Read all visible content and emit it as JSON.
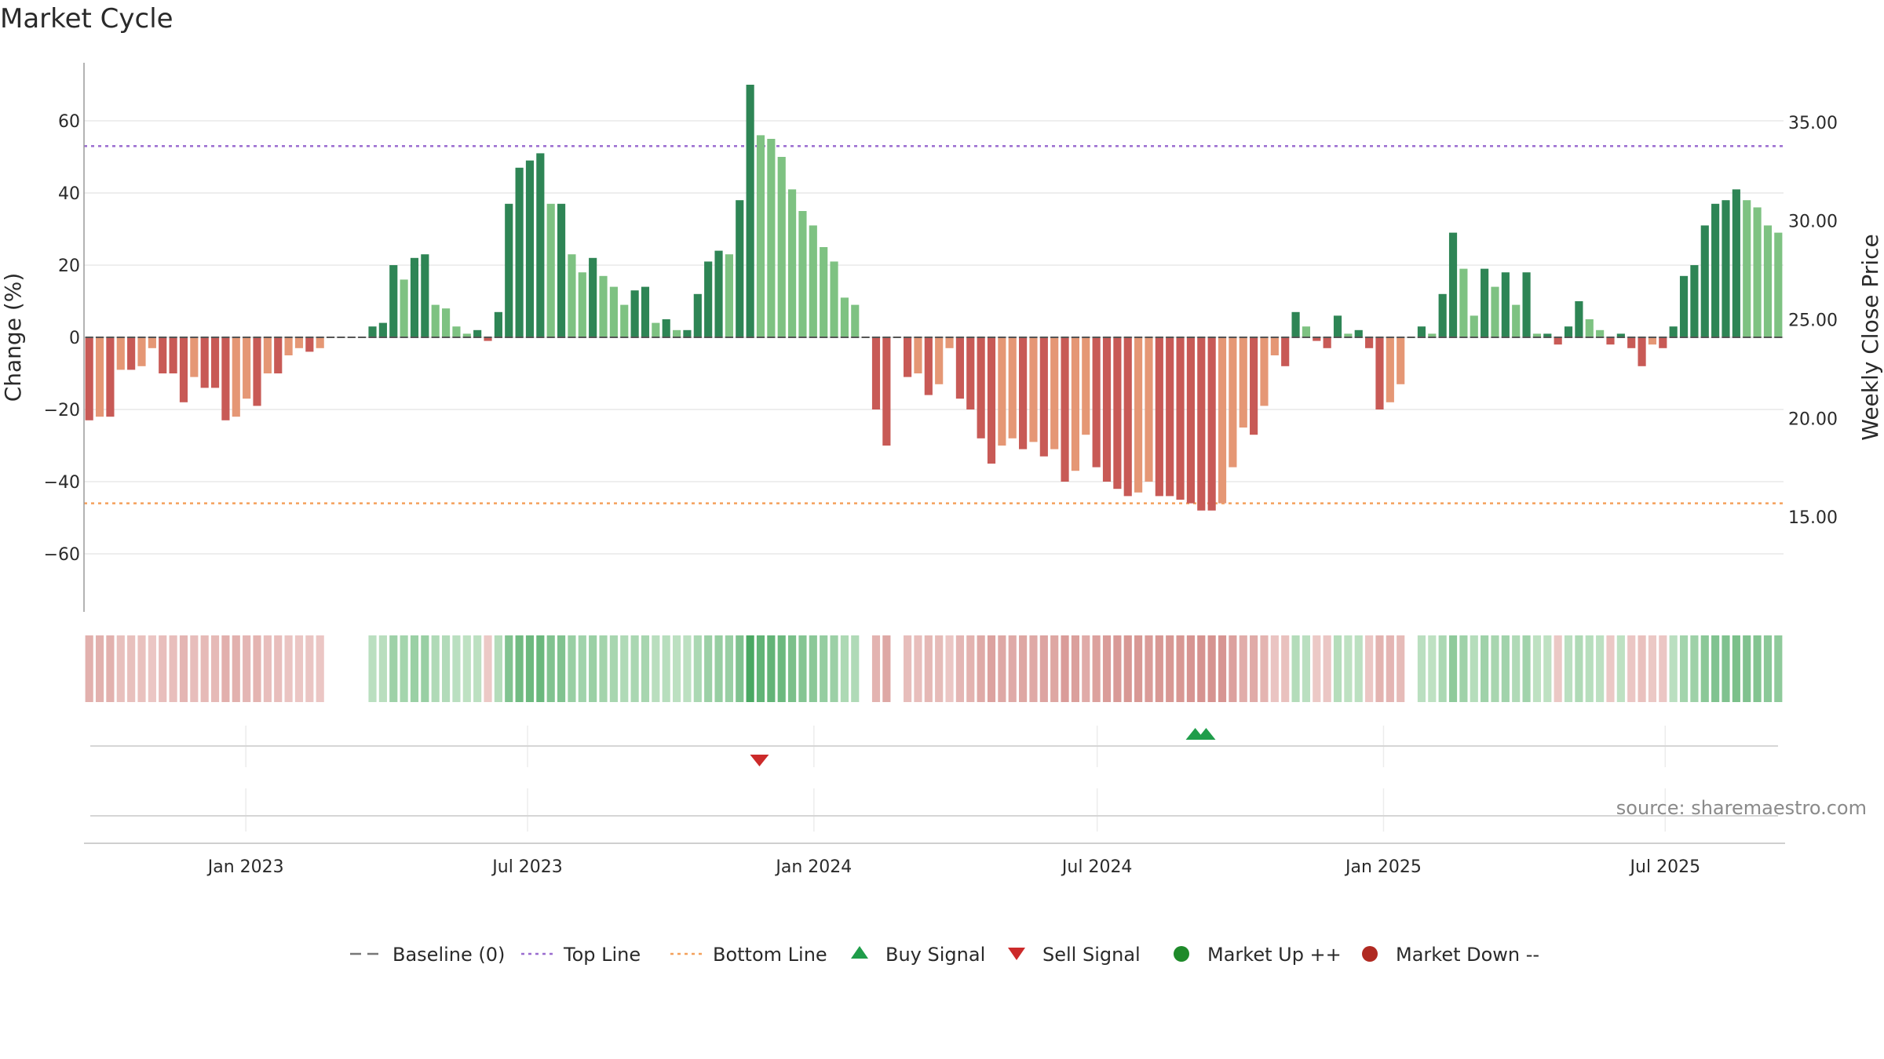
{
  "title": "Market Cycle",
  "source": "source: sharemaestro.com",
  "colors": {
    "up_strong": "#2e8555",
    "up_light": "#7ec282",
    "down_strong": "#c85a56",
    "down_light": "#e59775",
    "top_line": "#9b6dd0",
    "bottom_line": "#f4a15c",
    "buy": "#1f9d4a",
    "sell": "#cc2a2a",
    "market_up": "#1e8a2a",
    "market_down": "#b02a22",
    "baseline": "#555555"
  },
  "chart_data": {
    "type": "bar",
    "title": "Market Cycle",
    "ylabel": "Change (%)",
    "ylabel_right": "Weekly Close Price",
    "ylim": [
      -76,
      76
    ],
    "y_ticks": [
      60,
      40,
      20,
      0,
      -20,
      -40,
      -60
    ],
    "y_tick_labels": [
      "60",
      "40",
      "20",
      "0",
      "−20",
      "−40",
      "−60"
    ],
    "right_ticks": [
      35,
      30,
      25,
      20,
      15
    ],
    "right_tick_labels": [
      "35.00",
      "30.00",
      "25.00",
      "20.00",
      "15.00"
    ],
    "right_ylim": [
      10.2,
      39.6
    ],
    "x_start": "2022-09-19",
    "x_end": "2025-09-15",
    "x_ticks": [
      "2023-01-01",
      "2023-07-01",
      "2024-01-01",
      "2024-07-01",
      "2025-01-01",
      "2025-07-01"
    ],
    "x_tick_labels": [
      "Jan 2023",
      "Jul 2023",
      "Jan 2024",
      "Jul 2024",
      "Jan 2025",
      "Jul 2025"
    ],
    "top_line": 53,
    "bottom_line": -46,
    "baseline": 0,
    "grid": true,
    "weekly_change": [
      -23,
      -22,
      -22,
      -9,
      -9,
      -8,
      -3,
      -10,
      -10,
      -18,
      -11,
      -14,
      -14,
      -23,
      -22,
      -17,
      -19,
      -10,
      -10,
      -5,
      -3,
      -4,
      -3,
      0,
      0,
      0,
      0,
      3,
      4,
      20,
      16,
      22,
      23,
      9,
      8,
      3,
      1,
      2,
      -1,
      7,
      37,
      47,
      49,
      51,
      37,
      37,
      23,
      18,
      22,
      17,
      14,
      9,
      13,
      14,
      4,
      5,
      2,
      2,
      12,
      21,
      24,
      23,
      38,
      70,
      56,
      55,
      50,
      41,
      35,
      31,
      25,
      21,
      11,
      9,
      0,
      -20,
      -30,
      0,
      -11,
      -10,
      -16,
      -13,
      -3,
      -17,
      -20,
      -28,
      -35,
      -30,
      -28,
      -31,
      -29,
      -33,
      -31,
      -40,
      -37,
      -27,
      -36,
      -40,
      -42,
      -44,
      -43,
      -40,
      -44,
      -44,
      -45,
      -46,
      -48,
      -48,
      -46,
      -36,
      -25,
      -27,
      -19,
      -5,
      -8,
      7,
      3,
      -1,
      -3,
      6,
      1,
      2,
      -3,
      -20,
      -18,
      -13,
      0,
      3,
      1,
      12,
      29,
      19,
      6,
      19,
      14,
      18,
      9,
      18,
      1,
      1,
      -2,
      3,
      10,
      5,
      2,
      -2,
      1,
      -3,
      -8,
      -2,
      -3,
      3,
      17,
      20,
      31,
      37,
      38,
      41,
      38,
      36,
      31,
      29
    ],
    "heat_strip_note": "cycle intensity band mirrors weekly_change",
    "signals": [
      {
        "type": "sell",
        "date": "2023-11-27"
      },
      {
        "type": "buy",
        "date": "2024-09-02"
      },
      {
        "type": "buy",
        "date": "2024-09-09"
      }
    ],
    "legend_position": "bottom-center",
    "legend": [
      {
        "label": "Baseline (0)",
        "kind": "dash-line"
      },
      {
        "label": "Top Line",
        "kind": "dot-line-purple"
      },
      {
        "label": "Bottom Line",
        "kind": "dot-line-orange"
      },
      {
        "label": "Buy Signal",
        "kind": "tri-up"
      },
      {
        "label": "Sell Signal",
        "kind": "tri-down"
      },
      {
        "label": "Market Up ++",
        "kind": "dot-green"
      },
      {
        "label": "Market Down --",
        "kind": "dot-red"
      }
    ]
  }
}
